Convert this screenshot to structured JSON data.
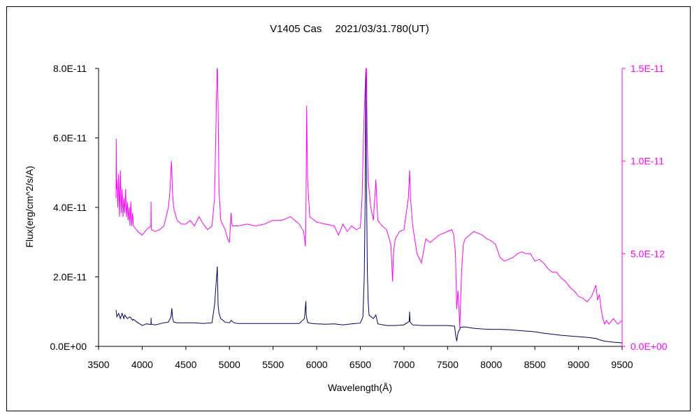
{
  "chart_data": {
    "type": "line",
    "title": "V1405 Cas　 2021/03/31.780(UT)",
    "xlabel": "Wavelength(Å)",
    "ylabel": "Flux(erg/cm^2/s/A)",
    "xlim": [
      3500,
      9500
    ],
    "ylim_left": [
      0,
      8e-11
    ],
    "ylim_right": [
      0,
      1.5e-11
    ],
    "x_ticks": [
      "3500",
      "4000",
      "4500",
      "5000",
      "5500",
      "6000",
      "6500",
      "7000",
      "7500",
      "8000",
      "8500",
      "9000",
      "9500"
    ],
    "y_ticks_left": [
      "0.0E+00",
      "2.0E-11",
      "4.0E-11",
      "6.0E-11",
      "8.0E-11"
    ],
    "y_ticks_right": [
      "0.0E+00",
      "5.0E-12",
      "1.0E-11",
      "1.5E-11"
    ],
    "grid": false,
    "legend": "none",
    "series": [
      {
        "axis": "left",
        "color": "#000066",
        "x": [
          3700,
          3710,
          3730,
          3750,
          3770,
          3790,
          3800,
          3830,
          3860,
          3890,
          3900,
          3940,
          3970,
          4000,
          4050,
          4100,
          4102,
          4104,
          4150,
          4250,
          4300,
          4330,
          4340,
          4345,
          4350,
          4360,
          4400,
          4500,
          4600,
          4700,
          4800,
          4830,
          4850,
          4861,
          4865,
          4870,
          4880,
          4900,
          4950,
          5000,
          5020,
          5050,
          5100,
          5200,
          5400,
          5600,
          5800,
          5860,
          5876,
          5880,
          5890,
          5900,
          5950,
          6000,
          6100,
          6200,
          6300,
          6400,
          6500,
          6530,
          6545,
          6555,
          6563,
          6570,
          6580,
          6590,
          6600,
          6650,
          6678,
          6700,
          6800,
          6900,
          7000,
          7060,
          7065,
          7070,
          7100,
          7200,
          7300,
          7400,
          7500,
          7580,
          7595,
          7605,
          7620,
          7650,
          7700,
          7800,
          7900,
          8000,
          8100,
          8200,
          8300,
          8400,
          8500,
          8600,
          8700,
          8800,
          8900,
          9000,
          9100,
          9200,
          9250,
          9300,
          9400,
          9500
        ],
        "y": [
          1.05e-11,
          8.5e-12,
          9.5e-12,
          8e-12,
          9.5e-12,
          8e-12,
          9e-12,
          8e-12,
          8.5e-12,
          7.5e-12,
          7.8e-12,
          7e-12,
          6.5e-12,
          6e-12,
          6.5e-12,
          6.3e-12,
          8.2e-12,
          6.4e-12,
          6.2e-12,
          6.8e-12,
          7e-12,
          8.5e-12,
          1.1e-11,
          9e-12,
          8e-12,
          7e-12,
          6.8e-12,
          6.8e-12,
          6.8e-12,
          6.6e-12,
          6.8e-12,
          1.2e-11,
          1.9e-11,
          2.3e-11,
          1.8e-11,
          1.2e-11,
          9.5e-12,
          8e-12,
          7e-12,
          6.8e-12,
          7.5e-12,
          6.8e-12,
          6.6e-12,
          6.6e-12,
          6.6e-12,
          6.6e-12,
          6.6e-12,
          8e-12,
          1.3e-11,
          9e-12,
          7.5e-12,
          6.8e-12,
          6.6e-12,
          6.5e-12,
          6.4e-12,
          6.5e-12,
          6.2e-12,
          6.5e-12,
          6.7e-12,
          8.5e-12,
          2e-11,
          4.2e-11,
          7.9e-11,
          5e-11,
          2.2e-11,
          1.3e-11,
          9e-12,
          8e-12,
          9e-12,
          6.5e-12,
          6e-12,
          6e-12,
          6.2e-12,
          7.2e-12,
          1e-11,
          7e-12,
          6.2e-12,
          6e-12,
          6e-12,
          6e-12,
          6e-12,
          5.8e-12,
          2.8e-12,
          1.5e-12,
          4e-12,
          5.5e-12,
          5.6e-12,
          5.2e-12,
          5e-12,
          4.9e-12,
          4.9e-12,
          4.8e-12,
          4.6e-12,
          4.4e-12,
          4.2e-12,
          3.8e-12,
          3.5e-12,
          3.2e-12,
          3e-12,
          2.8e-12,
          2.6e-12,
          2.3e-12,
          1.8e-12,
          1.5e-12,
          1.2e-12,
          1e-12
        ]
      },
      {
        "axis": "right",
        "color": "#ff00ff",
        "x": [
          3700,
          3703,
          3706,
          3710,
          3720,
          3730,
          3740,
          3750,
          3760,
          3770,
          3780,
          3790,
          3800,
          3810,
          3820,
          3830,
          3840,
          3850,
          3860,
          3870,
          3880,
          3890,
          3900,
          3950,
          4000,
          4050,
          4100,
          4102,
          4104,
          4150,
          4200,
          4250,
          4300,
          4320,
          4335,
          4340,
          4345,
          4360,
          4400,
          4450,
          4500,
          4550,
          4600,
          4650,
          4700,
          4750,
          4800,
          4830,
          4850,
          4861,
          4870,
          4880,
          4900,
          4950,
          4980,
          5000,
          5018,
          5030,
          5050,
          5100,
          5200,
          5300,
          5400,
          5500,
          5600,
          5700,
          5750,
          5800,
          5850,
          5870,
          5876,
          5885,
          5895,
          5920,
          6000,
          6100,
          6200,
          6250,
          6300,
          6350,
          6400,
          6450,
          6500,
          6520,
          6540,
          6555,
          6563,
          6570,
          6580,
          6590,
          6620,
          6650,
          6678,
          6700,
          6750,
          6800,
          6850,
          6870,
          6880,
          6900,
          6950,
          7000,
          7050,
          7065,
          7075,
          7100,
          7150,
          7200,
          7250,
          7300,
          7400,
          7500,
          7550,
          7570,
          7590,
          7605,
          7620,
          7640,
          7660,
          7680,
          7700,
          7750,
          7800,
          7850,
          7900,
          7950,
          8000,
          8050,
          8100,
          8150,
          8200,
          8250,
          8300,
          8350,
          8400,
          8450,
          8500,
          8550,
          8600,
          8650,
          8700,
          8750,
          8800,
          8850,
          8900,
          8950,
          9000,
          9050,
          9100,
          9150,
          9200,
          9220,
          9240,
          9260,
          9280,
          9300,
          9320,
          9350,
          9400,
          9450,
          9500
        ],
        "y": [
          8e-12,
          1.12e-11,
          8.5e-12,
          9e-12,
          7.5e-12,
          9.3e-12,
          7e-12,
          9.5e-12,
          7.2e-12,
          8.5e-12,
          7e-12,
          8e-12,
          7.2e-12,
          8.5e-12,
          7e-12,
          7.8e-12,
          6.8e-12,
          7.5e-12,
          6.5e-12,
          7.8e-12,
          6.5e-12,
          7.2e-12,
          6.5e-12,
          6.2e-12,
          6e-12,
          6.3e-12,
          6.5e-12,
          7.8e-12,
          6.3e-12,
          6.2e-12,
          6.3e-12,
          6.5e-12,
          7.5e-12,
          8.5e-12,
          1e-11,
          9.5e-12,
          8.5e-12,
          7.5e-12,
          6.8e-12,
          6.6e-12,
          6.6e-12,
          6.8e-12,
          6.5e-12,
          7e-12,
          6.6e-12,
          6.3e-12,
          6.5e-12,
          8e-12,
          1.3e-11,
          1.55e-11,
          1.3e-11,
          8.5e-12,
          6.8e-12,
          6.3e-12,
          5.8e-12,
          5.6e-12,
          7.2e-12,
          6.5e-12,
          6.5e-12,
          6.5e-12,
          6.6e-12,
          6.5e-12,
          6.6e-12,
          6.8e-12,
          6.8e-12,
          7e-12,
          6.8e-12,
          6.6e-12,
          6.2e-12,
          5.4e-12,
          6.5e-12,
          1.3e-11,
          9e-12,
          7e-12,
          6.7e-12,
          6.6e-12,
          6.5e-12,
          6e-12,
          6.6e-12,
          6.2e-12,
          6.5e-12,
          6.3e-12,
          6.4e-12,
          8e-12,
          1.2e-11,
          1.4e-11,
          1.5e-11,
          1.55e-11,
          1.1e-11,
          9e-12,
          7.5e-12,
          6.8e-12,
          9e-12,
          6.8e-12,
          6.5e-12,
          6.3e-12,
          5.5e-12,
          3.5e-12,
          5e-12,
          5.8e-12,
          6.2e-12,
          6.3e-12,
          8e-12,
          9.5e-12,
          8e-12,
          6.5e-12,
          5e-12,
          4.5e-12,
          5.8e-12,
          5.6e-12,
          6e-12,
          6.2e-12,
          6.3e-12,
          6e-12,
          5e-12,
          2e-12,
          3e-12,
          1e-12,
          4e-12,
          5.5e-12,
          5.8e-12,
          6e-12,
          6.2e-12,
          6.1e-12,
          6e-12,
          5.8e-12,
          5.7e-12,
          5.5e-12,
          4.8e-12,
          4.6e-12,
          4.7e-12,
          4.8e-12,
          5e-12,
          5.1e-12,
          5e-12,
          5e-12,
          4.6e-12,
          4.7e-12,
          4.5e-12,
          4.2e-12,
          4e-12,
          4e-12,
          3.7e-12,
          3.5e-12,
          3.2e-12,
          3e-12,
          2.7e-12,
          2.6e-12,
          2.4e-12,
          2.7e-12,
          3.3e-12,
          2.5e-12,
          2.8e-12,
          2e-12,
          1.5e-12,
          1.2e-12,
          1.4e-12,
          1.2e-12,
          1.5e-12,
          1.2e-12,
          1.4e-12
        ]
      }
    ]
  }
}
